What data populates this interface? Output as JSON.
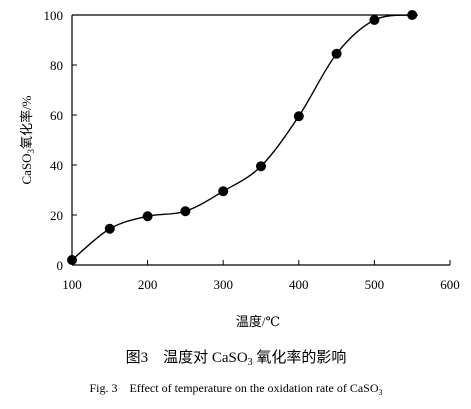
{
  "chart_data": {
    "type": "scatter",
    "xlabel": "温度/℃",
    "ylabel_main": "CaSO",
    "ylabel_sub": "3",
    "ylabel_rest": "氧化率/%",
    "xlim": [
      100,
      600
    ],
    "ylim": [
      0,
      100
    ],
    "x_ticks": [
      "100",
      "200",
      "300",
      "400",
      "500",
      "600"
    ],
    "y_ticks": [
      "0",
      "20",
      "40",
      "60",
      "80",
      "100"
    ],
    "grid": false,
    "series": [
      {
        "x": [
          100,
          150,
          200,
          250,
          300,
          350,
          400,
          450,
          500,
          550
        ],
        "values": [
          2,
          14.5,
          19.5,
          21.5,
          29.5,
          39.5,
          59.5,
          84.5,
          98,
          100
        ]
      }
    ],
    "caption_cn_prefix": "图3　温度对 CaSO",
    "caption_cn_sub": "3",
    "caption_cn_suffix": " 氧化率的影响",
    "caption_en_prefix": "Fig. 3　Effect of temperature on the oxidation rate of CaSO",
    "caption_en_sub": "3"
  }
}
